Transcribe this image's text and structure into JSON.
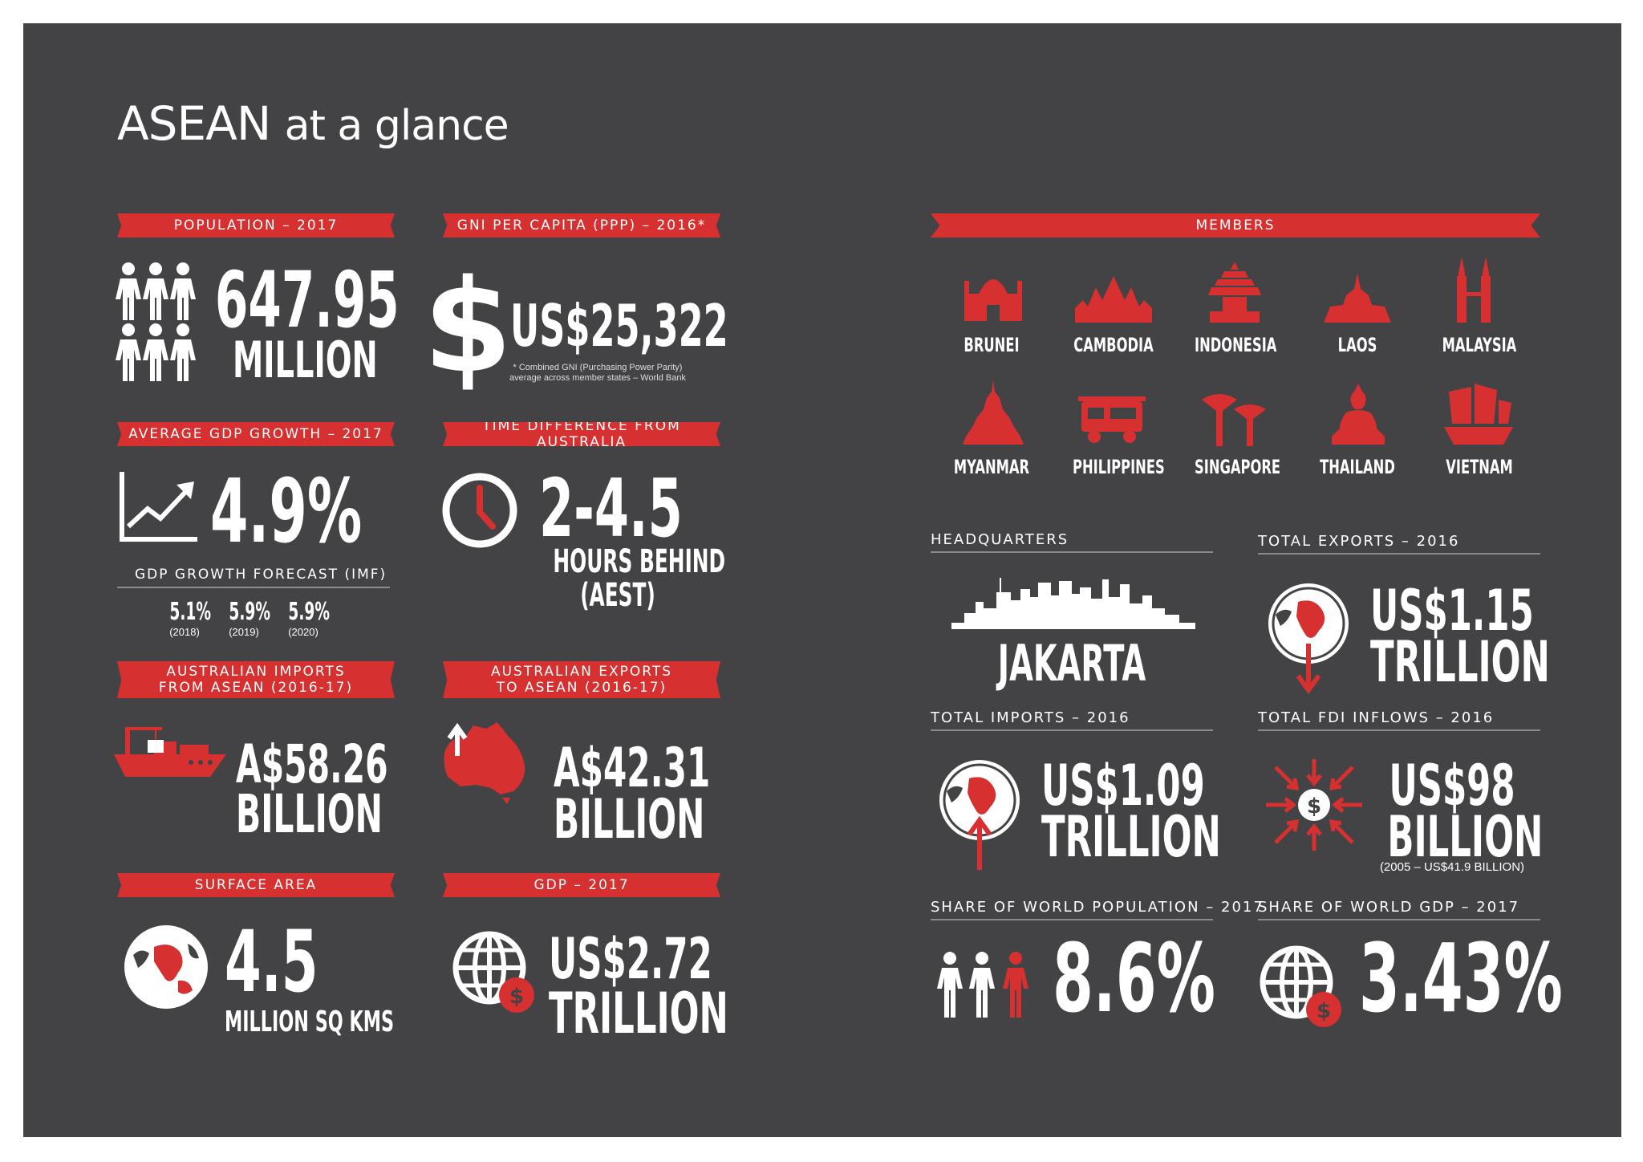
{
  "title": {
    "main": "ASEAN",
    "rest": "at a glance"
  },
  "colors": {
    "panel": "#434244",
    "accent": "#d63030",
    "text": "#ffffff"
  },
  "population": {
    "ribbon": "POPULATION – 2017",
    "value": "647.95",
    "unit": "MILLION",
    "icon": "people-icon"
  },
  "gni": {
    "ribbon": "GNI PER CAPITA (PPP) – 2016*",
    "value": "US$25,322",
    "note_line1": "* Combined GNI (Purchasing Power Parity)",
    "note_line2": "average across member states – World Bank",
    "icon": "dollar-icon"
  },
  "gdp_growth": {
    "ribbon": "AVERAGE GDP GROWTH – 2017",
    "value": "4.9%",
    "icon": "growth-chart-icon",
    "forecast_label": "GDP GROWTH FORECAST (IMF)",
    "forecast": [
      {
        "value": "5.1%",
        "year": "(2018)"
      },
      {
        "value": "5.9%",
        "year": "(2019)"
      },
      {
        "value": "5.9%",
        "year": "(2020)"
      }
    ]
  },
  "time_diff": {
    "ribbon": "TIME DIFFERENCE FROM AUSTRALIA",
    "value": "2-4.5",
    "line1": "HOURS BEHIND",
    "line2": "(AEST)",
    "icon": "clock-icon"
  },
  "aus_imports": {
    "ribbon_line1": "AUSTRALIAN IMPORTS",
    "ribbon_line2": "FROM ASEAN (2016-17)",
    "value": "A$58.26",
    "unit": "BILLION",
    "icon": "cargo-ship-icon"
  },
  "aus_exports": {
    "ribbon_line1": "AUSTRALIAN EXPORTS",
    "ribbon_line2": "TO ASEAN (2016-17)",
    "value": "A$42.31",
    "unit": "BILLION",
    "icon": "australia-map-icon"
  },
  "surface_area": {
    "ribbon": "SURFACE AREA",
    "value": "4.5",
    "unit": "MILLION SQ KMS",
    "icon": "globe-icon"
  },
  "gdp": {
    "ribbon": "GDP – 2017",
    "value": "US$2.72",
    "unit": "TRILLION",
    "icon": "globe-dollar-icon"
  },
  "members": {
    "ribbon": "MEMBERS",
    "items": [
      "BRUNEI",
      "CAMBODIA",
      "INDONESIA",
      "LAOS",
      "MALAYSIA",
      "MYANMAR",
      "PHILIPPINES",
      "SINGAPORE",
      "THAILAND",
      "VIETNAM"
    ]
  },
  "headquarters": {
    "label": "HEADQUARTERS",
    "value": "JAKARTA",
    "icon": "skyline-icon"
  },
  "total_exports": {
    "label": "TOTAL EXPORTS – 2016",
    "value": "US$1.15",
    "unit": "TRILLION",
    "icon": "globe-arrow-down-icon"
  },
  "total_imports": {
    "label": "TOTAL IMPORTS – 2016",
    "value": "US$1.09",
    "unit": "TRILLION",
    "icon": "globe-arrow-up-icon"
  },
  "fdi": {
    "label": "TOTAL FDI INFLOWS – 2016",
    "value": "US$98",
    "unit": "BILLION",
    "note": "(2005 – US$41.9 BILLION)",
    "icon": "inflow-icon"
  },
  "world_pop": {
    "label": "SHARE OF WORLD POPULATION – 2017",
    "value": "8.6%",
    "icon": "people-share-icon"
  },
  "world_gdp": {
    "label": "SHARE OF WORLD GDP – 2017",
    "value": "3.43%",
    "icon": "globe-dollar-icon"
  }
}
